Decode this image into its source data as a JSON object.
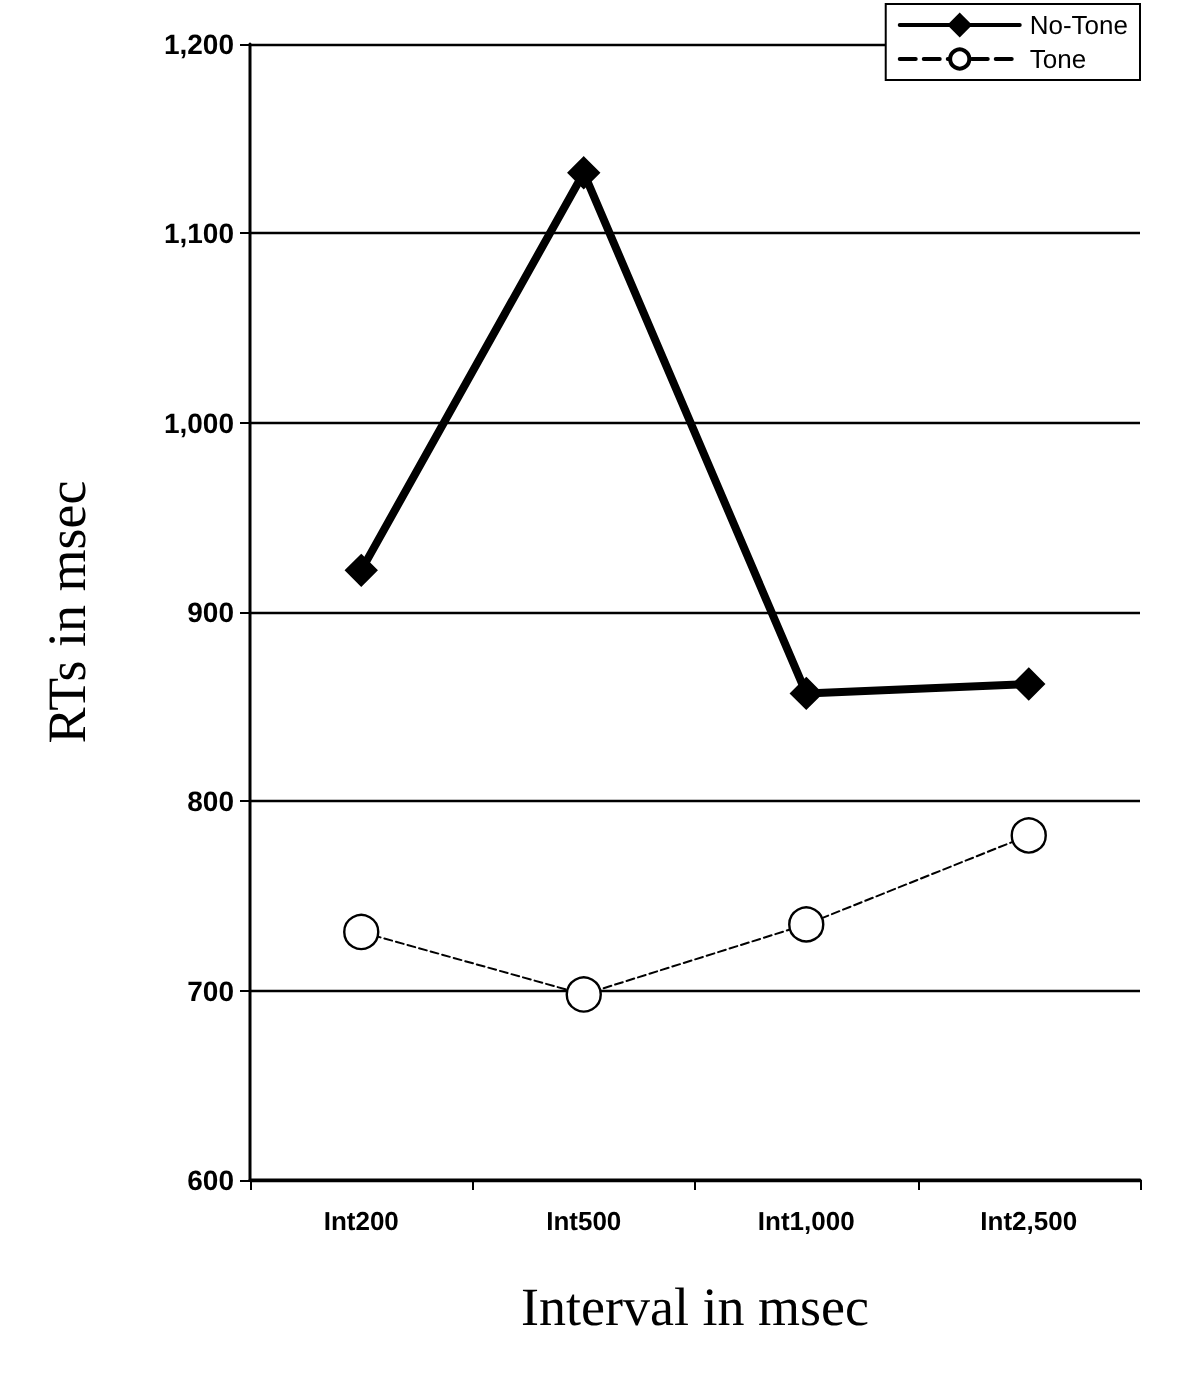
{
  "chart_data": {
    "type": "line",
    "xlabel": "Interval in msec",
    "ylabel": "RTs in msec",
    "categories": [
      "Int200",
      "Int500",
      "Int1,000",
      "Int2,500"
    ],
    "series": [
      {
        "name": "No-Tone",
        "color": "#000000",
        "values": [
          922,
          1132,
          857,
          862
        ],
        "marker": "diamond",
        "line_style": "solid"
      },
      {
        "name": "Tone",
        "color": "#000000",
        "values": [
          731,
          698,
          735,
          782
        ],
        "marker": "circle",
        "line_style": "dashed"
      }
    ],
    "ylim": [
      600,
      1200
    ],
    "yticks": [
      {
        "value": 600,
        "label": "600"
      },
      {
        "value": 700,
        "label": "700"
      },
      {
        "value": 800,
        "label": "800"
      },
      {
        "value": 900,
        "label": "900"
      },
      {
        "value": 1000,
        "label": "1,000"
      },
      {
        "value": 1100,
        "label": "1,100"
      },
      {
        "value": 1200,
        "label": "1,200"
      }
    ],
    "grid": "y",
    "legend": "top right"
  }
}
